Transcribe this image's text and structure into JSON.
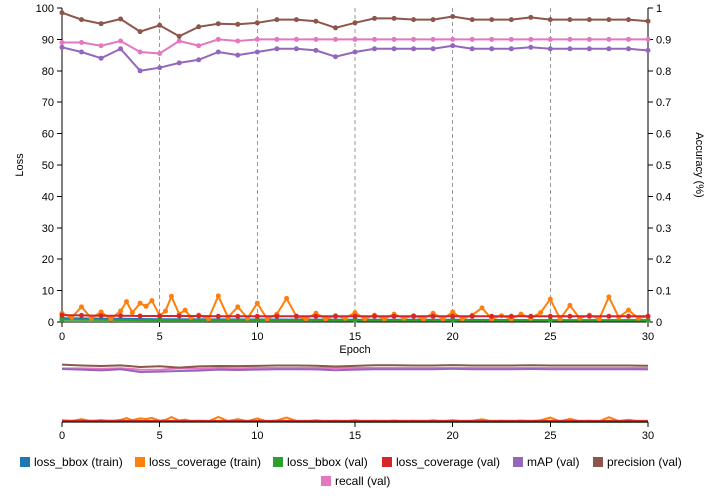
{
  "chart_data": {
    "type": "line",
    "xlabel": "Epoch",
    "ylabel_left": "Loss",
    "ylabel_right": "Accuracy (%)",
    "xlim": [
      0,
      30
    ],
    "ylim_left": [
      0,
      100
    ],
    "ylim_right": [
      0,
      1
    ],
    "x_ticks": [
      0,
      5,
      10,
      15,
      20,
      25,
      30
    ],
    "y_ticks_left": [
      0,
      10,
      20,
      30,
      40,
      50,
      60,
      70,
      80,
      90,
      100
    ],
    "y_ticks_right": [
      0,
      0.1,
      0.2,
      0.3,
      0.4,
      0.5,
      0.6,
      0.7,
      0.8,
      0.9,
      1
    ],
    "vertical_gridlines": [
      5,
      10,
      15,
      20,
      25,
      30
    ],
    "has_brush_overview": true,
    "series": [
      {
        "name": "loss_bbox (train)",
        "axis": "left",
        "color": "#1f77b4",
        "x": [
          0,
          5,
          10,
          15,
          20,
          25,
          30
        ],
        "values": [
          1.2,
          0.9,
          0.8,
          0.7,
          0.7,
          0.6,
          0.6
        ]
      },
      {
        "name": "loss_coverage (train)",
        "axis": "left",
        "color": "#ff7f0e",
        "x": [
          0,
          0.5,
          1,
          1.5,
          2,
          2.5,
          3,
          3.3,
          3.6,
          4,
          4.3,
          4.6,
          5,
          5.3,
          5.6,
          6,
          6.3,
          6.6,
          7,
          7.5,
          8,
          8.5,
          9,
          9.5,
          10,
          10.5,
          11,
          11.5,
          12,
          12.5,
          13,
          13.5,
          14,
          14.5,
          15,
          15.5,
          16,
          16.5,
          17,
          17.5,
          18,
          18.5,
          19,
          19.5,
          20,
          20.5,
          21,
          21.5,
          22,
          22.5,
          23,
          23.5,
          24,
          24.5,
          25,
          25.5,
          26,
          26.5,
          27,
          27.5,
          28,
          28.5,
          29,
          29.5,
          30
        ],
        "values": [
          2.8,
          1.5,
          4.8,
          1.2,
          3.2,
          1.0,
          3.5,
          6.5,
          3.0,
          6.0,
          5.0,
          6.8,
          2.0,
          3.5,
          8.2,
          2.5,
          3.8,
          1.5,
          2.2,
          1.0,
          8.3,
          1.5,
          4.8,
          1.2,
          6.0,
          1.0,
          2.5,
          7.5,
          1.8,
          1.0,
          2.8,
          1.0,
          2.0,
          1.2,
          3.0,
          1.0,
          2.2,
          1.0,
          2.5,
          1.2,
          2.0,
          1.0,
          2.8,
          1.0,
          3.2,
          1.0,
          2.2,
          4.5,
          1.0,
          2.0,
          1.0,
          2.5,
          1.2,
          3.0,
          7.3,
          1.0,
          5.3,
          1.2,
          2.2,
          1.0,
          8.0,
          1.5,
          3.8,
          1.2,
          1.8
        ]
      },
      {
        "name": "loss_bbox (val)",
        "axis": "left",
        "color": "#2ca02c",
        "x": [
          0,
          5,
          10,
          15,
          20,
          25,
          30
        ],
        "values": [
          0.7,
          0.6,
          0.6,
          0.5,
          0.5,
          0.5,
          0.5
        ]
      },
      {
        "name": "loss_coverage (val)",
        "axis": "left",
        "color": "#d62728",
        "x": [
          0,
          1,
          2,
          3,
          4,
          5,
          6,
          7,
          8,
          9,
          10,
          11,
          12,
          13,
          14,
          15,
          16,
          17,
          18,
          19,
          20,
          21,
          22,
          23,
          24,
          25,
          26,
          27,
          28,
          29,
          30
        ],
        "values": [
          2.2,
          2.1,
          2.0,
          2.0,
          1.9,
          1.9,
          1.9,
          1.9,
          1.8,
          1.8,
          1.8,
          1.8,
          1.8,
          1.8,
          1.8,
          1.8,
          1.8,
          1.8,
          1.8,
          1.8,
          1.8,
          1.8,
          1.8,
          1.8,
          1.8,
          1.8,
          1.8,
          1.8,
          1.8,
          1.8,
          1.8
        ]
      },
      {
        "name": "mAP (val)",
        "axis": "right",
        "color": "#9467bd",
        "x": [
          0,
          1,
          2,
          3,
          4,
          5,
          6,
          7,
          8,
          9,
          10,
          11,
          12,
          13,
          14,
          15,
          16,
          17,
          18,
          19,
          20,
          21,
          22,
          23,
          24,
          25,
          26,
          27,
          28,
          29,
          30
        ],
        "values": [
          0.875,
          0.86,
          0.84,
          0.87,
          0.8,
          0.81,
          0.825,
          0.835,
          0.86,
          0.85,
          0.86,
          0.87,
          0.87,
          0.865,
          0.845,
          0.86,
          0.87,
          0.87,
          0.87,
          0.87,
          0.88,
          0.87,
          0.87,
          0.87,
          0.875,
          0.87,
          0.87,
          0.87,
          0.87,
          0.87,
          0.865
        ]
      },
      {
        "name": "precision (val)",
        "axis": "right",
        "color": "#8c564b",
        "x": [
          0,
          1,
          2,
          3,
          4,
          5,
          6,
          7,
          8,
          9,
          10,
          11,
          12,
          13,
          14,
          15,
          16,
          17,
          18,
          19,
          20,
          21,
          22,
          23,
          24,
          25,
          26,
          27,
          28,
          29,
          30
        ],
        "values": [
          0.985,
          0.963,
          0.95,
          0.965,
          0.925,
          0.945,
          0.91,
          0.94,
          0.95,
          0.948,
          0.953,
          0.963,
          0.963,
          0.958,
          0.937,
          0.953,
          0.967,
          0.967,
          0.963,
          0.963,
          0.973,
          0.963,
          0.963,
          0.963,
          0.97,
          0.963,
          0.963,
          0.963,
          0.963,
          0.963,
          0.958
        ]
      },
      {
        "name": "recall (val)",
        "axis": "right",
        "color": "#e377c2",
        "x": [
          0,
          1,
          2,
          3,
          4,
          5,
          6,
          7,
          8,
          9,
          10,
          11,
          12,
          13,
          14,
          15,
          16,
          17,
          18,
          19,
          20,
          21,
          22,
          23,
          24,
          25,
          26,
          27,
          28,
          29,
          30
        ],
        "values": [
          0.89,
          0.89,
          0.88,
          0.895,
          0.86,
          0.855,
          0.895,
          0.88,
          0.9,
          0.895,
          0.9,
          0.9,
          0.9,
          0.9,
          0.9,
          0.9,
          0.9,
          0.9,
          0.9,
          0.9,
          0.9,
          0.9,
          0.9,
          0.9,
          0.9,
          0.9,
          0.9,
          0.9,
          0.9,
          0.9,
          0.9
        ]
      }
    ]
  }
}
